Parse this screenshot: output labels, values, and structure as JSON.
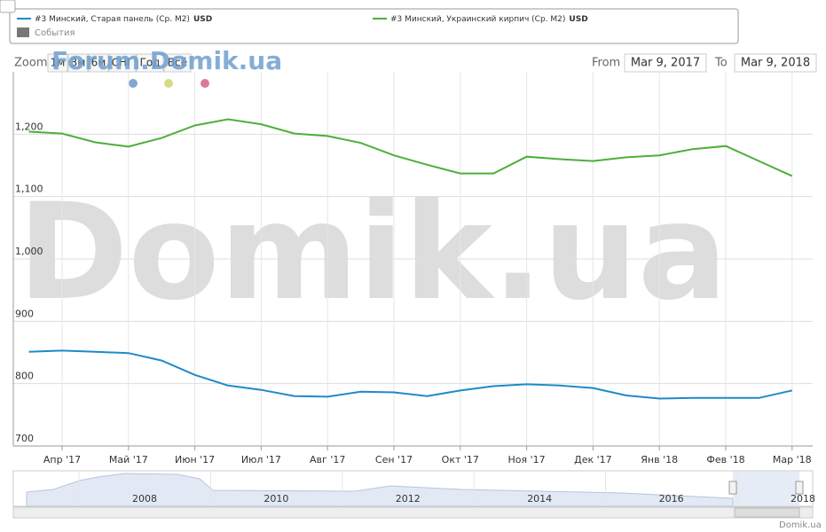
{
  "chart_data": {
    "type": "line",
    "currency": "USD",
    "events_label": "События",
    "zoom": {
      "label": "Zoom",
      "buttons": [
        "1м",
        "3м",
        "6м",
        "СНГ",
        "Год",
        "Всё"
      ]
    },
    "range": {
      "from_label": "From",
      "from": "Mar 9, 2017",
      "to_label": "To",
      "to": "Mar 9, 2018"
    },
    "watermark": "Domik.ua",
    "forum_watermark": "Forum.Domik.ua",
    "credit": "Domik.ua",
    "navigator_labels": [
      "2008",
      "2010",
      "2012",
      "2014",
      "2016",
      "2018"
    ],
    "categories": [
      null,
      "Апр '17",
      null,
      "Май '17",
      null,
      "Июн '17",
      null,
      "Июл '17",
      null,
      "Авг '17",
      null,
      "Сен '17",
      null,
      "Окт '17",
      null,
      "Ноя '17",
      null,
      "Дек '17",
      null,
      "Янв '18",
      null,
      "Фев '18",
      null,
      "Мар '18"
    ],
    "series": [
      {
        "name": "#3 Минский, Старая панель (Ср. М2)",
        "color": "#1f8ac8",
        "values": [
          851,
          853,
          851,
          849,
          837,
          814,
          797,
          790,
          780,
          779,
          787,
          786,
          780,
          789,
          796,
          799,
          797,
          793,
          781,
          776,
          777,
          777,
          777,
          789
        ]
      },
      {
        "name": "#3 Минский, Украинский кирпич (Ср. М2)",
        "color": "#4daf3a",
        "values": [
          1204,
          1201,
          1187,
          1180,
          1194,
          1214,
          1224,
          1216,
          1201,
          1197,
          1186,
          1166,
          1151,
          1137,
          1137,
          1164,
          1160,
          1157,
          1163,
          1166,
          1176,
          1181,
          1157,
          1133
        ]
      }
    ],
    "ylim": [
      700,
      1300
    ],
    "yticks": [
      700,
      800,
      900,
      {
        "value": 1000,
        "label": "1,000"
      },
      {
        "value": 1100,
        "label": "1,100"
      },
      {
        "value": 1200,
        "label": "1,200"
      }
    ],
    "grid": true
  }
}
